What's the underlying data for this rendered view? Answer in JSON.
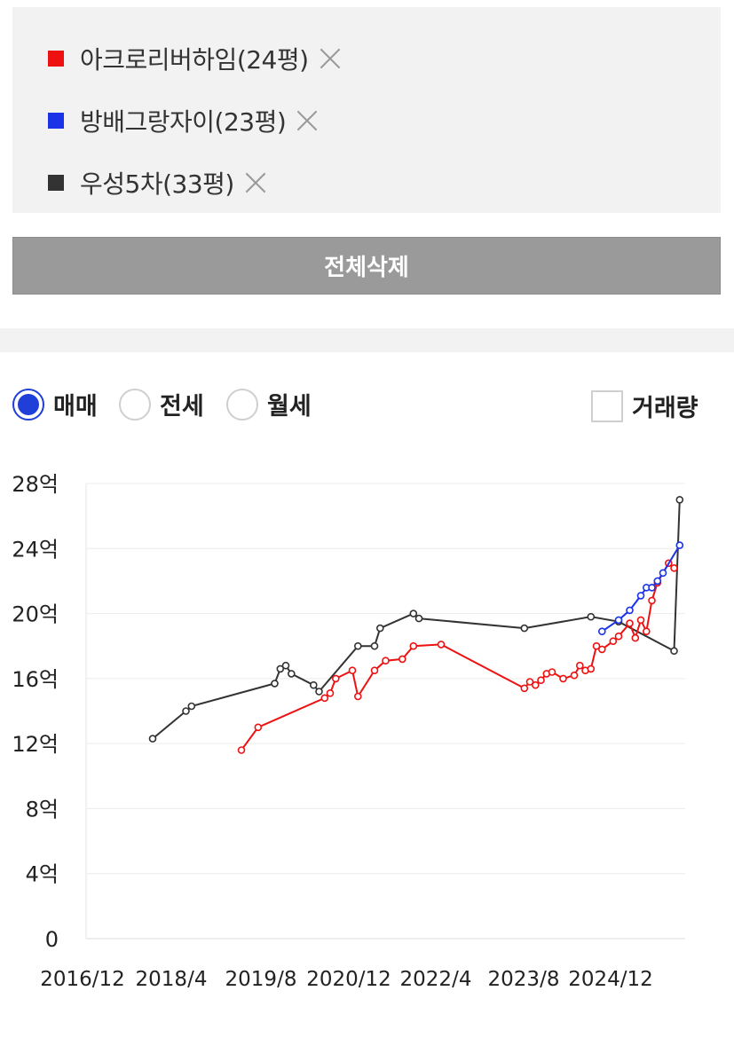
{
  "compare": {
    "items": [
      {
        "label": "아크로리버하임(24평)",
        "color": "#ee1111"
      },
      {
        "label": "방배그랑자이(23평)",
        "color": "#1a33e6"
      },
      {
        "label": "우성5차(33평)",
        "color": "#333333"
      }
    ],
    "delete_all_label": "전체삭제"
  },
  "controls": {
    "radios": [
      {
        "label": "매매",
        "checked": true
      },
      {
        "label": "전세",
        "checked": false
      },
      {
        "label": "월세",
        "checked": false
      }
    ],
    "volume_label": "거래량",
    "volume_checked": false
  },
  "chart_data": {
    "type": "line",
    "y_ticks": [
      "0",
      "4억",
      "8억",
      "12억",
      "16억",
      "20억",
      "24억",
      "28억"
    ],
    "ylim": [
      0,
      28
    ],
    "x_ticks": [
      "2016/12",
      "2018/4",
      "2019/8",
      "2020/12",
      "2022/4",
      "2023/8",
      "2024/12"
    ],
    "xlim": [
      "2016-12",
      "2025-12"
    ],
    "grid": true,
    "legend": "none",
    "series": [
      {
        "name": "우성5차(33평)",
        "color": "#333333",
        "points": [
          [
            "2017-12",
            12.3
          ],
          [
            "2018-06",
            14.0
          ],
          [
            "2018-07",
            14.3
          ],
          [
            "2019-10",
            15.7
          ],
          [
            "2019-11",
            16.6
          ],
          [
            "2019-12",
            16.8
          ],
          [
            "2020-01",
            16.3
          ],
          [
            "2020-05",
            15.6
          ],
          [
            "2020-06",
            15.2
          ],
          [
            "2021-01",
            18.0
          ],
          [
            "2021-04",
            18.0
          ],
          [
            "2021-05",
            19.1
          ],
          [
            "2021-11",
            20.0
          ],
          [
            "2021-12",
            19.7
          ],
          [
            "2023-07",
            19.1
          ],
          [
            "2024-07",
            19.8
          ],
          [
            "2024-12",
            19.5
          ],
          [
            "2025-10",
            17.7
          ],
          [
            "2025-11",
            27.0
          ]
        ]
      },
      {
        "name": "아크로리버하임(24평)",
        "color": "#ee1111",
        "points": [
          [
            "2019-04",
            11.6
          ],
          [
            "2019-07",
            13.0
          ],
          [
            "2020-07",
            14.8
          ],
          [
            "2020-08",
            15.1
          ],
          [
            "2020-09",
            16.0
          ],
          [
            "2020-12",
            16.5
          ],
          [
            "2021-01",
            14.9
          ],
          [
            "2021-04",
            16.5
          ],
          [
            "2021-06",
            17.1
          ],
          [
            "2021-09",
            17.2
          ],
          [
            "2021-11",
            18.0
          ],
          [
            "2022-04",
            18.1
          ],
          [
            "2023-07",
            15.4
          ],
          [
            "2023-08",
            15.8
          ],
          [
            "2023-09",
            15.6
          ],
          [
            "2023-10",
            15.9
          ],
          [
            "2023-11",
            16.3
          ],
          [
            "2023-12",
            16.4
          ],
          [
            "2024-02",
            16.0
          ],
          [
            "2024-04",
            16.2
          ],
          [
            "2024-05",
            16.8
          ],
          [
            "2024-06",
            16.5
          ],
          [
            "2024-07",
            16.6
          ],
          [
            "2024-08",
            18.0
          ],
          [
            "2024-09",
            17.8
          ],
          [
            "2024-11",
            18.3
          ],
          [
            "2024-12",
            18.6
          ],
          [
            "2025-02",
            19.4
          ],
          [
            "2025-03",
            18.5
          ],
          [
            "2025-04",
            19.6
          ],
          [
            "2025-05",
            18.9
          ],
          [
            "2025-06",
            20.8
          ],
          [
            "2025-07",
            21.9
          ],
          [
            "2025-09",
            23.1
          ],
          [
            "2025-10",
            22.8
          ]
        ]
      },
      {
        "name": "방배그랑자이(23평)",
        "color": "#1a33e6",
        "points": [
          [
            "2024-09",
            18.9
          ],
          [
            "2024-12",
            19.6
          ],
          [
            "2025-02",
            20.2
          ],
          [
            "2025-04",
            21.1
          ],
          [
            "2025-05",
            21.6
          ],
          [
            "2025-06",
            21.6
          ],
          [
            "2025-07",
            22.0
          ],
          [
            "2025-08",
            22.5
          ],
          [
            "2025-11",
            24.2
          ]
        ]
      }
    ]
  }
}
